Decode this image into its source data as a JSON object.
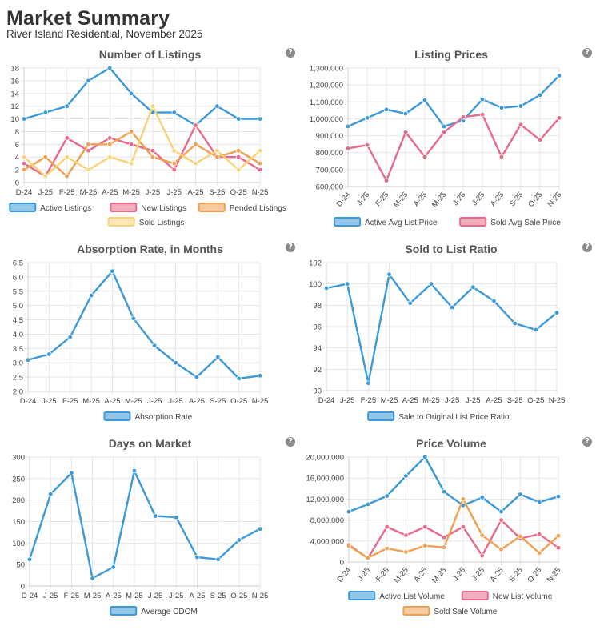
{
  "header": {
    "title": "Market Summary",
    "subtitle": "River Island Residential, November 2025"
  },
  "help_icon": "?",
  "chart_data": [
    {
      "id": "listings",
      "type": "line",
      "title": "Number of Listings",
      "categories": [
        "D-24",
        "J-25",
        "F-25",
        "M-25",
        "A-25",
        "M-25",
        "J-25",
        "J-25",
        "A-25",
        "S-25",
        "O-25",
        "N-25"
      ],
      "ylim": [
        0,
        18
      ],
      "yticks": [
        0,
        2,
        4,
        6,
        8,
        10,
        12,
        14,
        16,
        18
      ],
      "yformat": "plain",
      "xrotate": false,
      "series": [
        {
          "name": "Active Listings",
          "color": "#3a9ad9",
          "values": [
            10,
            11,
            12,
            16,
            18,
            14,
            11,
            11,
            9,
            12,
            10,
            10
          ]
        },
        {
          "name": "New Listings",
          "color": "#e8698a",
          "values": [
            3,
            1,
            7,
            5,
            7,
            6,
            5,
            2,
            9,
            4,
            4,
            2
          ]
        },
        {
          "name": "Pended Listings",
          "color": "#f0a050",
          "values": [
            2,
            4,
            1,
            6,
            6,
            8,
            4,
            3,
            6,
            4,
            5,
            3
          ]
        },
        {
          "name": "Sold Listings",
          "color": "#f8d478",
          "values": [
            4,
            1,
            4,
            2,
            4,
            3,
            12,
            5,
            3,
            5,
            2,
            5
          ]
        }
      ]
    },
    {
      "id": "prices",
      "type": "line",
      "title": "Listing Prices",
      "categories": [
        "D-24",
        "J-25",
        "F-25",
        "M-25",
        "A-25",
        "M-25",
        "J-25",
        "J-25",
        "A-25",
        "S-25",
        "O-25",
        "N-25"
      ],
      "ylim": [
        600000,
        1300000
      ],
      "yticks": [
        600000,
        700000,
        800000,
        900000,
        1000000,
        1100000,
        1200000,
        1300000
      ],
      "yformat": "comma",
      "xrotate": true,
      "series": [
        {
          "name": "Active Avg List Price",
          "color": "#3a9ad9",
          "values": [
            955000,
            1005000,
            1055000,
            1030000,
            1110000,
            955000,
            990000,
            1115000,
            1065000,
            1075000,
            1140000,
            1255000
          ]
        },
        {
          "name": "Sold Avg Sale Price",
          "color": "#e8698a",
          "values": [
            825000,
            845000,
            635000,
            920000,
            775000,
            920000,
            1010000,
            1025000,
            775000,
            965000,
            875000,
            1005000
          ]
        }
      ]
    },
    {
      "id": "absorption",
      "type": "line",
      "title": "Absorption Rate, in Months",
      "categories": [
        "D-24",
        "J-25",
        "F-25",
        "M-25",
        "A-25",
        "M-25",
        "J-25",
        "J-25",
        "A-25",
        "S-25",
        "O-25",
        "N-25"
      ],
      "ylim": [
        2.0,
        6.5
      ],
      "yticks": [
        2.0,
        2.5,
        3.0,
        3.5,
        4.0,
        4.5,
        5.0,
        5.5,
        6.0,
        6.5
      ],
      "yformat": "fixed1",
      "xrotate": false,
      "series": [
        {
          "name": "Absorption Rate",
          "color": "#3a9ad9",
          "values": [
            3.1,
            3.3,
            3.9,
            5.35,
            6.2,
            4.55,
            3.6,
            3.0,
            2.5,
            3.2,
            2.45,
            2.55
          ]
        }
      ]
    },
    {
      "id": "ratio",
      "type": "line",
      "title": "Sold to List Ratio",
      "categories": [
        "D-24",
        "J-25",
        "F-25",
        "M-25",
        "A-25",
        "M-25",
        "J-25",
        "J-25",
        "A-25",
        "S-25",
        "O-25",
        "N-25"
      ],
      "ylim": [
        90,
        102
      ],
      "yticks": [
        90,
        92,
        94,
        96,
        98,
        100,
        102
      ],
      "yformat": "plain",
      "xrotate": false,
      "series": [
        {
          "name": "Sale to Original List Price Ratio",
          "color": "#3a9ad9",
          "values": [
            99.6,
            100.0,
            90.7,
            100.9,
            98.2,
            100.0,
            97.8,
            99.7,
            98.4,
            96.3,
            95.7,
            97.3
          ]
        }
      ]
    },
    {
      "id": "dom",
      "type": "line",
      "title": "Days on Market",
      "categories": [
        "D-24",
        "J-25",
        "F-25",
        "M-25",
        "A-25",
        "M-25",
        "J-25",
        "J-25",
        "A-25",
        "S-25",
        "O-25",
        "N-25"
      ],
      "ylim": [
        0,
        300
      ],
      "yticks": [
        0,
        50,
        100,
        150,
        200,
        250,
        300
      ],
      "yformat": "plain",
      "xrotate": false,
      "series": [
        {
          "name": "Average CDOM",
          "color": "#3a9ad9",
          "values": [
            62,
            214,
            263,
            18,
            44,
            268,
            163,
            160,
            67,
            62,
            107,
            133
          ]
        }
      ]
    },
    {
      "id": "volume",
      "type": "line",
      "title": "Price Volume",
      "categories": [
        "D-24",
        "J-25",
        "F-25",
        "M-25",
        "A-25",
        "M-25",
        "J-25",
        "J-25",
        "A-25",
        "S-25",
        "O-25",
        "N-25"
      ],
      "ylim": [
        0,
        20000000
      ],
      "yticks": [
        0,
        4000000,
        8000000,
        12000000,
        16000000,
        20000000
      ],
      "yformat": "comma",
      "xrotate": true,
      "series": [
        {
          "name": "Active List Volume",
          "color": "#3a9ad9",
          "values": [
            9600000,
            11000000,
            12600000,
            16400000,
            20000000,
            13400000,
            10800000,
            12300000,
            9600000,
            12900000,
            11400000,
            12500000
          ]
        },
        {
          "name": "New List Volume",
          "color": "#e8698a",
          "values": [
            3300000,
            700000,
            6700000,
            5100000,
            6700000,
            4700000,
            6700000,
            1200000,
            8000000,
            4500000,
            5300000,
            2700000
          ]
        },
        {
          "name": "Sold Sale Volume",
          "color": "#f0a050",
          "values": [
            3100000,
            800000,
            2600000,
            1900000,
            3100000,
            2800000,
            12000000,
            5100000,
            2400000,
            4900000,
            1700000,
            5000000
          ]
        }
      ]
    }
  ]
}
